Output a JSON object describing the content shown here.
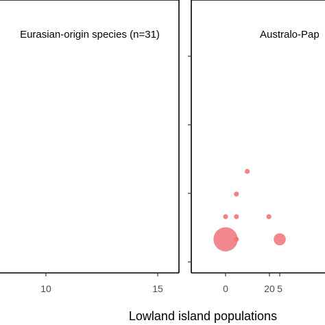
{
  "chart_data": [
    {
      "type": "scatter",
      "title": "Eurasian-origin species (n=31)",
      "x_ticks": [
        10,
        15,
        20
      ],
      "points": [],
      "grid": false
    },
    {
      "type": "scatter",
      "title": "Australo-Pap",
      "x_ticks": [
        0,
        5
      ],
      "xlabel": "Lowland island populations",
      "points": [
        {
          "x": 0,
          "y": 1,
          "size": 24
        },
        {
          "x": 5,
          "y": 1,
          "size": 6
        },
        {
          "x": 1,
          "y": 1,
          "size": 1
        },
        {
          "x": 0,
          "y": 3,
          "size": 1
        },
        {
          "x": 1,
          "y": 3,
          "size": 1
        },
        {
          "x": 4,
          "y": 3,
          "size": 1
        },
        {
          "x": 1,
          "y": 5,
          "size": 1
        },
        {
          "x": 2,
          "y": 7,
          "size": 1
        }
      ],
      "point_color": "#f0727a",
      "grid": false
    }
  ]
}
